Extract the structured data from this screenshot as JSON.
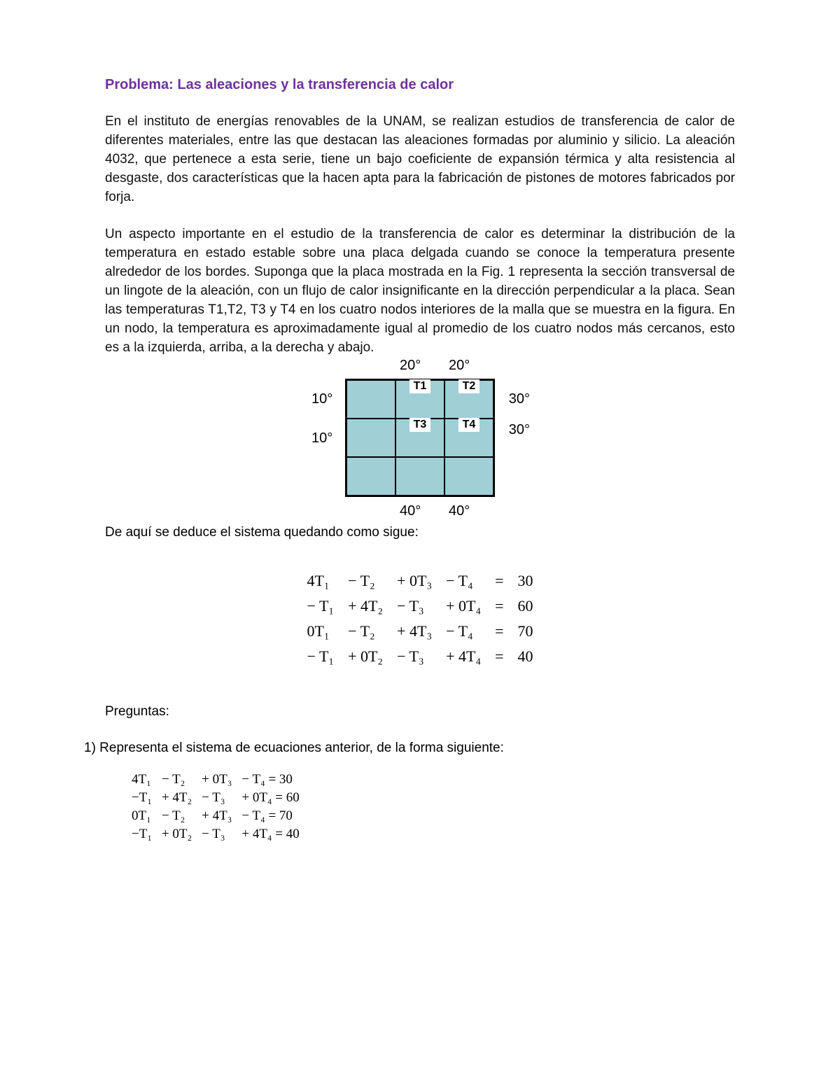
{
  "title": "Problema: Las aleaciones y la transferencia de calor",
  "paragraph1": "En el instituto de energías renovables de la UNAM, se realizan estudios de transferencia de calor de diferentes materiales, entre las que destacan las aleaciones formadas por aluminio y silicio. La aleación 4032, que pertenece a esta serie, tiene un bajo coeficiente de expansión térmica y alta resistencia al desgaste, dos características que la hacen apta para la fabricación de pistones de motores fabricados por forja.",
  "paragraph2": "Un aspecto importante en el estudio de la transferencia de calor es determinar la distribución de la temperatura en estado estable sobre una placa delgada cuando se conoce la temperatura presente alrededor de los bordes. Suponga que la placa mostrada en la Fig. 1 representa la sección transversal de un lingote de la aleación, con un flujo de calor insignificante en la dirección perpendicular a la placa. Sean las temperaturas T1,T2, T3 y T4 en los cuatro nodos interiores de la malla que se muestra en la figura. En un nodo, la temperatura es aproximadamente igual al promedio de los cuatro nodos más cercanos, esto es a la izquierda, arriba, a la derecha y abajo.",
  "diagram": {
    "grid_fill": "#a0cfd6",
    "border_color": "#000000",
    "top_labels": [
      "20°",
      "20°"
    ],
    "left_labels": [
      "10°",
      "10°"
    ],
    "right_labels": [
      "30°",
      "30°"
    ],
    "bottom_labels": [
      "40°",
      "40°"
    ],
    "nodes": {
      "T1": "T1",
      "T2": "T2",
      "T3": "T3",
      "T4": "T4"
    }
  },
  "deduce_line": "De aquí se deduce el sistema quedando como sigue:",
  "system_big": {
    "rows": [
      {
        "c1": "4T₁",
        "c2": "− T₂",
        "c3": "+ 0T₃",
        "c4": "− T₄",
        "eq": "=",
        "rhs": "30"
      },
      {
        "c1": "− T₁",
        "c2": "+ 4T₂",
        "c3": "− T₃",
        "c4": "+ 0T₄",
        "eq": "=",
        "rhs": "60"
      },
      {
        "c1": "0T₁",
        "c2": "− T₂",
        "c3": "+ 4T₃",
        "c4": "− T₄",
        "eq": "=",
        "rhs": "70"
      },
      {
        "c1": "− T₁",
        "c2": "+ 0T₂",
        "c3": "− T₃",
        "c4": "+ 4T₄",
        "eq": "=",
        "rhs": "40"
      }
    ]
  },
  "questions_header": "Preguntas:",
  "question1": "1)   Representa el sistema de ecuaciones anterior, de la forma siguiente:",
  "system_small": {
    "rows": [
      {
        "c1": "4T₁",
        "c2": "− T₂",
        "c3": "+ 0T₃",
        "c4": "− T₄ = 30"
      },
      {
        "c1": "−T₁",
        "c2": "+ 4T₂",
        "c3": "− T₃",
        "c4": "+ 0T₄ = 60"
      },
      {
        "c1": "0T₁",
        "c2": "− T₂",
        "c3": "+ 4T₃",
        "c4": "− T₄ = 70"
      },
      {
        "c1": "−T₁",
        "c2": "+ 0T₂",
        "c3": "− T₃",
        "c4": "+ 4T₄ = 40"
      }
    ]
  },
  "colors": {
    "title": "#7030a0",
    "text": "#000000",
    "background": "#ffffff"
  }
}
